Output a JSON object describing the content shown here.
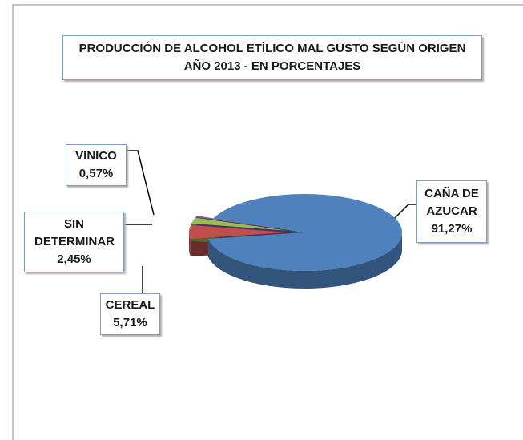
{
  "chart_data": {
    "type": "pie",
    "title": "PRODUCCIÓN DE ALCOHOL ETÍLICO MAL GUSTO SEGÚN ORIGEN",
    "subtitle": "AÑO 2013 - EN PORCENTAJES",
    "categories": [
      "CAÑA DE AZUCAR",
      "CEREAL",
      "SIN DETERMINAR",
      "VINICO"
    ],
    "values": [
      91.27,
      5.71,
      2.45,
      0.57
    ],
    "value_labels": [
      "91,27%",
      "5,71%",
      "2,45%",
      "0,57%"
    ],
    "colors": [
      "#4f81bd",
      "#c0504d",
      "#9bbb59",
      "#8064a2"
    ]
  }
}
